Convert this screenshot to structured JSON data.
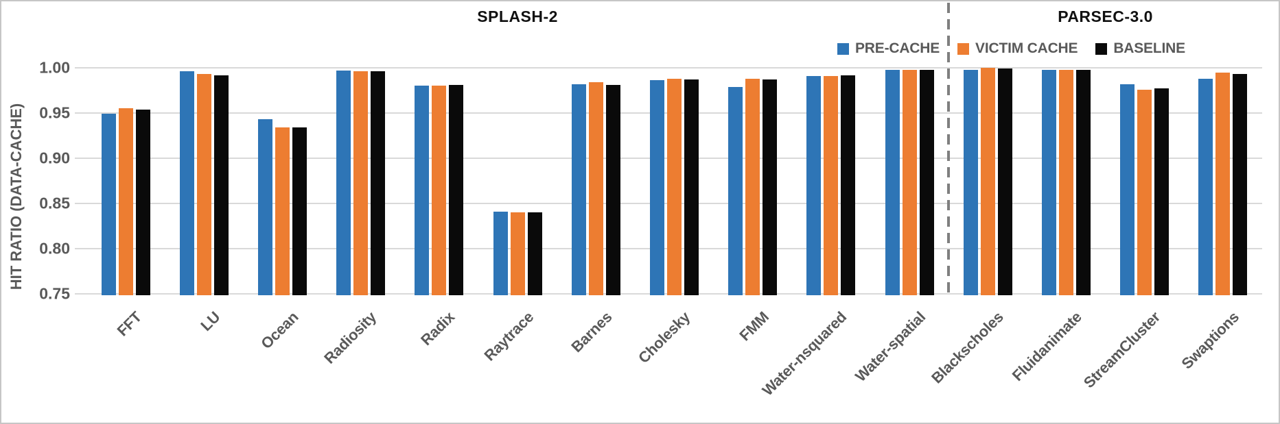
{
  "section_titles": {
    "left": "SPLASH-2",
    "right": "PARSEC-3.0"
  },
  "y_axis": {
    "label": "HIT RATIO (DATA-CACHE)",
    "ticks": [
      {
        "label": "1.00",
        "value": 1.0
      },
      {
        "label": "0.95",
        "value": 0.95
      },
      {
        "label": "0.90",
        "value": 0.9
      },
      {
        "label": "0.85",
        "value": 0.85
      },
      {
        "label": "0.80",
        "value": 0.8
      },
      {
        "label": "0.75",
        "value": 0.75
      }
    ]
  },
  "colors": {
    "pre_cache": "#2e75b6",
    "victim_cache": "#ed7d31",
    "baseline": "#0a0a0a",
    "gridline": "#d9d9d9",
    "axis_text": "#595959",
    "divider": "#7f7f7f"
  },
  "chart_data": {
    "type": "bar",
    "title": "",
    "ylabel": "HIT RATIO (DATA-CACHE)",
    "xlabel": "",
    "ylim": [
      0.75,
      1.0
    ],
    "ytick_step": 0.05,
    "grid": true,
    "legend_position": "top-right",
    "categories": [
      "FFT",
      "LU",
      "Ocean",
      "Radiosity",
      "Radix",
      "Raytrace",
      "Barnes",
      "Cholesky",
      "FMM",
      "Water-nsquared",
      "Water-spatial",
      "Blackscholes",
      "Fluidanimate",
      "StreamCluster",
      "Swaptions"
    ],
    "groups": [
      {
        "name": "SPLASH-2",
        "count": 11
      },
      {
        "name": "PARSEC-3.0",
        "count": 4
      }
    ],
    "series": [
      {
        "name": "PRE-CACHE",
        "color": "#2e75b6",
        "values": [
          0.949,
          0.996,
          0.943,
          0.997,
          0.98,
          0.841,
          0.982,
          0.986,
          0.979,
          0.991,
          0.998,
          0.998,
          0.998,
          0.982,
          0.988
        ]
      },
      {
        "name": "VICTIM CACHE",
        "color": "#ed7d31",
        "values": [
          0.955,
          0.993,
          0.934,
          0.996,
          0.98,
          0.84,
          0.984,
          0.988,
          0.988,
          0.991,
          0.998,
          1.0,
          0.998,
          0.976,
          0.995
        ]
      },
      {
        "name": "BASELINE",
        "color": "#0a0a0a",
        "values": [
          0.954,
          0.992,
          0.934,
          0.996,
          0.981,
          0.84,
          0.981,
          0.987,
          0.987,
          0.992,
          0.998,
          0.999,
          0.998,
          0.977,
          0.993
        ]
      }
    ]
  }
}
